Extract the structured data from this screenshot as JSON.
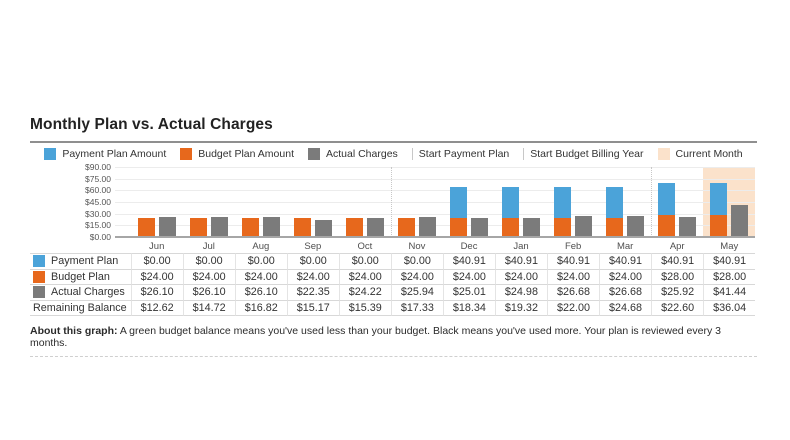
{
  "title": "Monthly Plan vs. Actual Charges",
  "colors": {
    "payment_blue": "#4BA3D9",
    "budget_orange": "#E7681C",
    "actual_gray": "#7B7B7B",
    "current_month_peach": "#FBE2CB",
    "marker_line": "#C8C8C8"
  },
  "legend": [
    {
      "label": "Payment Plan Amount",
      "swatch": "square",
      "color": "#4BA3D9"
    },
    {
      "label": "Budget Plan Amount",
      "swatch": "square",
      "color": "#E7681C"
    },
    {
      "label": "Actual Charges",
      "swatch": "square",
      "color": "#7B7B7B"
    },
    {
      "label": "Start Payment Plan",
      "swatch": "vline",
      "color": "#C8C8C8"
    },
    {
      "label": "Start Budget Billing Year",
      "swatch": "vline",
      "color": "#C8C8C8"
    },
    {
      "label": "Current Month",
      "swatch": "square",
      "color": "#FBE2CB"
    }
  ],
  "chart_data": {
    "type": "bar",
    "title": "Monthly Plan vs. Actual Charges",
    "categories": [
      "Jun",
      "Jul",
      "Aug",
      "Sep",
      "Oct",
      "Nov",
      "Dec",
      "Jan",
      "Feb",
      "Mar",
      "Apr",
      "May"
    ],
    "series": [
      {
        "name": "Payment Plan Amount",
        "color": "#4BA3D9",
        "stack": "plan",
        "values": [
          0,
          0,
          0,
          0,
          0,
          0,
          40.91,
          40.91,
          40.91,
          40.91,
          40.91,
          40.91
        ]
      },
      {
        "name": "Budget Plan Amount",
        "color": "#E7681C",
        "stack": "plan",
        "values": [
          24.0,
          24.0,
          24.0,
          24.0,
          24.0,
          24.0,
          24.0,
          24.0,
          24.0,
          24.0,
          28.0,
          28.0
        ]
      },
      {
        "name": "Actual Charges",
        "color": "#7B7B7B",
        "stack": null,
        "values": [
          26.1,
          26.1,
          26.1,
          22.35,
          24.22,
          25.94,
          25.01,
          24.98,
          26.68,
          26.68,
          25.92,
          41.44
        ]
      }
    ],
    "ylim": [
      0,
      90
    ],
    "y_ticks": [
      "$90.00",
      "$75.00",
      "$60.00",
      "$45.00",
      "$30.00",
      "$15.00",
      "$0.00"
    ],
    "grid": true,
    "legend_position": "top",
    "annotations": [
      {
        "type": "vline",
        "before_category": "Nov",
        "label": "Start Payment Plan"
      },
      {
        "type": "vline",
        "before_category": "Apr",
        "label": "Start Budget Billing Year"
      },
      {
        "type": "highlight",
        "category": "May",
        "label": "Current Month",
        "color": "#FBE2CB"
      }
    ]
  },
  "table": {
    "rows": [
      {
        "label": "Payment Plan",
        "swatch_color": "#4BA3D9",
        "values": [
          "$0.00",
          "$0.00",
          "$0.00",
          "$0.00",
          "$0.00",
          "$0.00",
          "$40.91",
          "$40.91",
          "$40.91",
          "$40.91",
          "$40.91",
          "$40.91"
        ]
      },
      {
        "label": "Budget Plan",
        "swatch_color": "#E7681C",
        "values": [
          "$24.00",
          "$24.00",
          "$24.00",
          "$24.00",
          "$24.00",
          "$24.00",
          "$24.00",
          "$24.00",
          "$24.00",
          "$24.00",
          "$28.00",
          "$28.00"
        ]
      },
      {
        "label": "Actual Charges",
        "swatch_color": "#7B7B7B",
        "values": [
          "$26.10",
          "$26.10",
          "$26.10",
          "$22.35",
          "$24.22",
          "$25.94",
          "$25.01",
          "$24.98",
          "$26.68",
          "$26.68",
          "$25.92",
          "$41.44"
        ]
      },
      {
        "label": "Remaining Balance",
        "swatch_color": null,
        "values": [
          "$12.62",
          "$14.72",
          "$16.82",
          "$15.17",
          "$15.39",
          "$17.33",
          "$18.34",
          "$19.32",
          "$22.00",
          "$24.68",
          "$22.60",
          "$36.04"
        ]
      }
    ]
  },
  "about": {
    "prefix": "About this graph:",
    "text": " A green budget balance means you've used less than your budget. Black means you've used more. Your plan is reviewed every 3 months."
  }
}
